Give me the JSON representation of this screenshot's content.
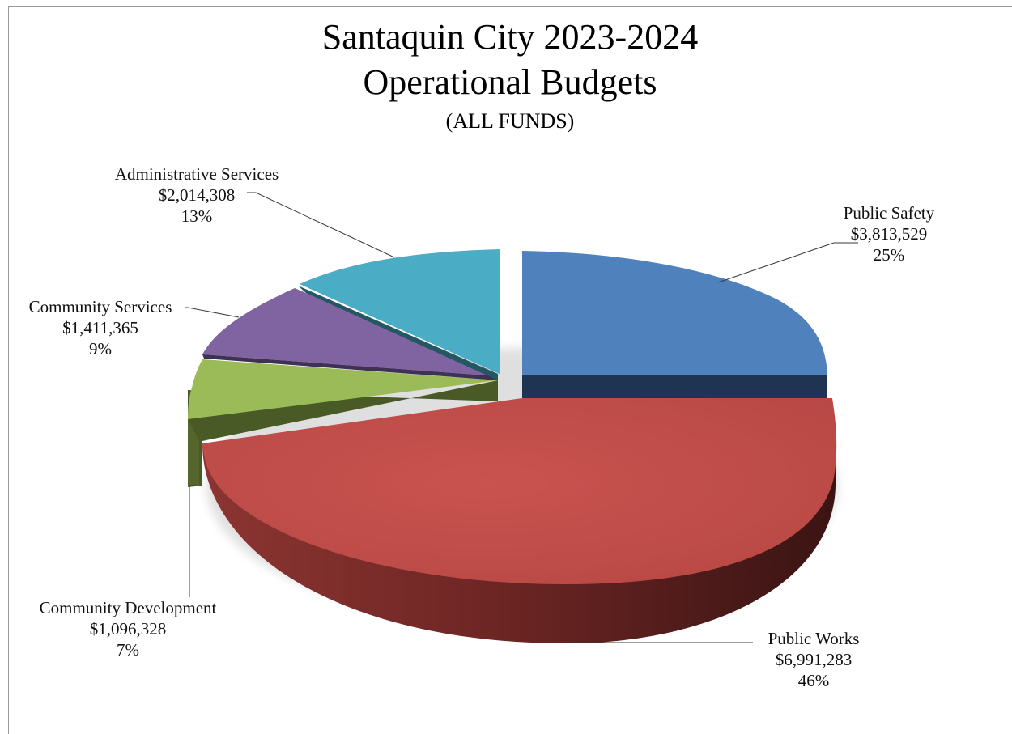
{
  "chart_data": {
    "type": "pie",
    "style": "3d-exploded",
    "title": "Santaquin City 2023-2024",
    "title_line2": "Operational Budgets",
    "subtitle": "(ALL FUNDS)",
    "legend": "none",
    "slices": [
      {
        "name": "Public Safety",
        "value_label": "$3,813,529",
        "value": 3813529,
        "percent_label": "25%",
        "color": "#4f81bd"
      },
      {
        "name": "Public Works",
        "value_label": "$6,991,283",
        "value": 6991283,
        "percent_label": "46%",
        "color": "#c0504d"
      },
      {
        "name": "Community Development",
        "value_label": "$1,096,328",
        "value": 1096328,
        "percent_label": "7%",
        "color": "#9bbb59"
      },
      {
        "name": "Community Services",
        "value_label": "$1,411,365",
        "value": 1411365,
        "percent_label": "9%",
        "color": "#8064a2"
      },
      {
        "name": "Administrative Services",
        "value_label": "$2,014,308",
        "value": 2014308,
        "percent_label": "13%",
        "color": "#4bacc6"
      }
    ]
  }
}
